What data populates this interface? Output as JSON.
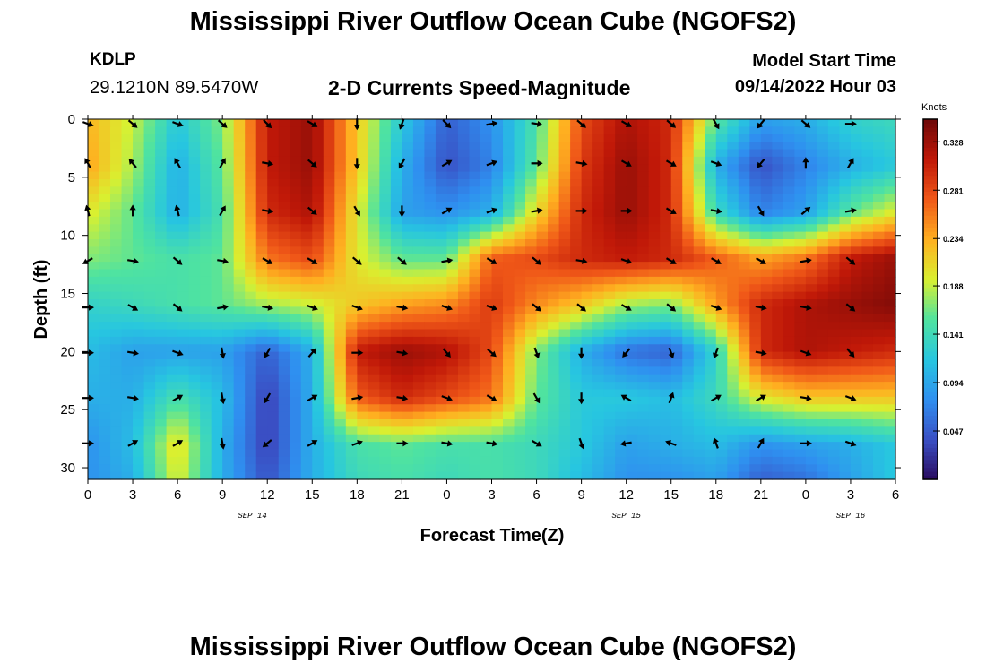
{
  "header": {
    "title": "Mississippi River Outflow Ocean Cube (NGOFS2)",
    "footer_title": "Mississippi River Outflow Ocean Cube (NGOFS2)",
    "station_id": "KDLP",
    "location": "29.1210N  89.5470W",
    "subtitle": "2-D Currents Speed-Magnitude",
    "model_start_label": "Model Start Time",
    "model_start_value": "09/14/2022 Hour 03"
  },
  "colors": {
    "colormap": [
      "#2a0b5e",
      "#3a4fc4",
      "#2f8ff0",
      "#27c6e0",
      "#4fe3a0",
      "#d9f030",
      "#ffb020",
      "#f05818",
      "#c01808",
      "#6e0808"
    ]
  },
  "chart_data": {
    "type": "heatmap",
    "title": "2-D Currents Speed-Magnitude",
    "xlabel": "Forecast Time(Z)",
    "ylabel": "Depth (ft)",
    "x_range_hours": [
      0,
      54
    ],
    "y_range": [
      0,
      31
    ],
    "x_tick_labels": [
      "0",
      "3",
      "6",
      "9",
      "12",
      "15",
      "18",
      "21",
      "0",
      "3",
      "6",
      "9",
      "12",
      "15",
      "18",
      "21",
      "0",
      "3",
      "6"
    ],
    "y_ticks": [
      0,
      5,
      10,
      15,
      20,
      25,
      30
    ],
    "date_labels": [
      {
        "label": "SEP 14",
        "hour": 11
      },
      {
        "label": "SEP 15",
        "hour": 36
      },
      {
        "label": "SEP 16",
        "hour": 51
      }
    ],
    "colorbar": {
      "title": "Knots",
      "ticks": [
        0.328,
        0.281,
        0.234,
        0.188,
        0.141,
        0.094,
        0.047
      ],
      "range": [
        0,
        0.35
      ]
    },
    "arrow_hours": [
      0,
      3,
      6,
      9,
      12,
      15,
      18,
      21,
      24,
      27,
      30,
      33,
      36,
      39,
      42,
      45,
      48,
      51
    ],
    "arrow_depths": [
      0.4,
      3.8,
      7.9,
      12.2,
      16.2,
      20.1,
      24,
      27.9
    ],
    "arrow_directions_deg": [
      [
        110,
        130,
        110,
        130,
        135,
        120,
        180,
        200,
        135,
        80,
        100,
        130,
        120,
        130,
        150,
        220,
        130,
        90
      ],
      [
        330,
        320,
        330,
        30,
        100,
        130,
        180,
        210,
        60,
        70,
        90,
        100,
        120,
        120,
        110,
        220,
        0,
        30
      ],
      [
        345,
        0,
        345,
        30,
        100,
        130,
        150,
        180,
        60,
        70,
        80,
        90,
        90,
        120,
        100,
        150,
        50,
        80
      ],
      [
        240,
        100,
        130,
        100,
        120,
        120,
        130,
        130,
        80,
        120,
        130,
        100,
        110,
        120,
        120,
        120,
        80,
        130
      ],
      [
        90,
        120,
        130,
        80,
        100,
        110,
        110,
        100,
        110,
        110,
        130,
        130,
        120,
        130,
        110,
        100,
        100,
        130
      ],
      [
        90,
        100,
        110,
        170,
        210,
        40,
        90,
        100,
        140,
        130,
        160,
        180,
        220,
        160,
        200,
        100,
        110,
        140
      ],
      [
        90,
        100,
        60,
        170,
        210,
        60,
        80,
        100,
        110,
        120,
        150,
        180,
        300,
        20,
        60,
        60,
        100,
        110
      ],
      [
        90,
        60,
        60,
        170,
        230,
        60,
        70,
        90,
        100,
        100,
        120,
        160,
        260,
        290,
        340,
        30,
        90,
        110
      ]
    ],
    "speed_anchor_hours": [
      0,
      3,
      6,
      9,
      12,
      15,
      18,
      21,
      24,
      27,
      30,
      33,
      36,
      39,
      42,
      45,
      48,
      51,
      54
    ],
    "speed_anchor_depths": [
      0,
      4,
      8,
      12,
      16,
      20,
      24,
      28,
      31
    ],
    "speed_knots": [
      [
        0.23,
        0.19,
        0.12,
        0.17,
        0.31,
        0.33,
        0.22,
        0.12,
        0.05,
        0.08,
        0.15,
        0.28,
        0.32,
        0.3,
        0.16,
        0.09,
        0.1,
        0.13,
        0.14
      ],
      [
        0.24,
        0.18,
        0.1,
        0.16,
        0.31,
        0.33,
        0.22,
        0.1,
        0.04,
        0.07,
        0.16,
        0.29,
        0.33,
        0.3,
        0.1,
        0.04,
        0.07,
        0.1,
        0.12
      ],
      [
        0.2,
        0.16,
        0.1,
        0.15,
        0.3,
        0.32,
        0.2,
        0.09,
        0.08,
        0.1,
        0.21,
        0.3,
        0.33,
        0.3,
        0.14,
        0.07,
        0.09,
        0.16,
        0.2
      ],
      [
        0.17,
        0.16,
        0.15,
        0.16,
        0.26,
        0.28,
        0.2,
        0.16,
        0.16,
        0.27,
        0.28,
        0.3,
        0.31,
        0.3,
        0.27,
        0.24,
        0.26,
        0.31,
        0.33
      ],
      [
        0.13,
        0.14,
        0.15,
        0.16,
        0.18,
        0.19,
        0.22,
        0.24,
        0.25,
        0.29,
        0.25,
        0.22,
        0.18,
        0.17,
        0.24,
        0.3,
        0.32,
        0.33,
        0.34
      ],
      [
        0.11,
        0.09,
        0.09,
        0.09,
        0.05,
        0.1,
        0.31,
        0.33,
        0.32,
        0.28,
        0.17,
        0.1,
        0.06,
        0.05,
        0.13,
        0.3,
        0.32,
        0.31,
        0.3
      ],
      [
        0.1,
        0.1,
        0.15,
        0.11,
        0.03,
        0.1,
        0.27,
        0.3,
        0.28,
        0.26,
        0.16,
        0.12,
        0.12,
        0.11,
        0.14,
        0.2,
        0.22,
        0.22,
        0.22
      ],
      [
        0.08,
        0.11,
        0.21,
        0.1,
        0.03,
        0.1,
        0.15,
        0.16,
        0.15,
        0.15,
        0.14,
        0.12,
        0.09,
        0.1,
        0.11,
        0.08,
        0.09,
        0.1,
        0.12
      ],
      [
        0.08,
        0.1,
        0.2,
        0.1,
        0.04,
        0.1,
        0.14,
        0.15,
        0.14,
        0.15,
        0.14,
        0.11,
        0.08,
        0.08,
        0.09,
        0.05,
        0.06,
        0.09,
        0.12
      ]
    ]
  }
}
